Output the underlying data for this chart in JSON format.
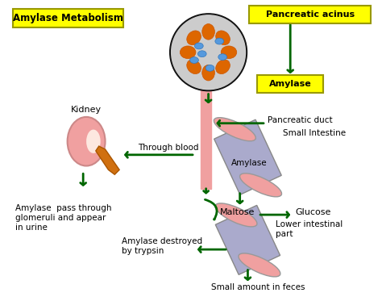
{
  "bg_color": "#ffffff",
  "arrow_color": "#006600",
  "arrow_lw": 2.0,
  "yellow_bg": "#ffff00",
  "pink_color": "#f0a0a0",
  "blue_gray": "#aaaacc",
  "orange_color": "#d07010",
  "labels": {
    "title": "Amylase Metabolism",
    "pancreatic_acinus": "Pancreatic acinus",
    "amylase_box": "Amylase",
    "pancreatic_duct": "Pancreatic duct",
    "small_intestine": "Small Intestine",
    "amylase_in_intestine": "Amylase",
    "maltose": "Maltose",
    "glucose": "Glucose",
    "lower_intestinal": "Lower intestinal\npart",
    "kidney": "Kidney",
    "through_blood": "Through blood",
    "amylase_urine": "Amylase  pass through\nglomeruli and appear\nin urine",
    "amylase_destroyed": "Amylase destroyed\nby trypsin",
    "small_feces": "Small amount in feces"
  }
}
